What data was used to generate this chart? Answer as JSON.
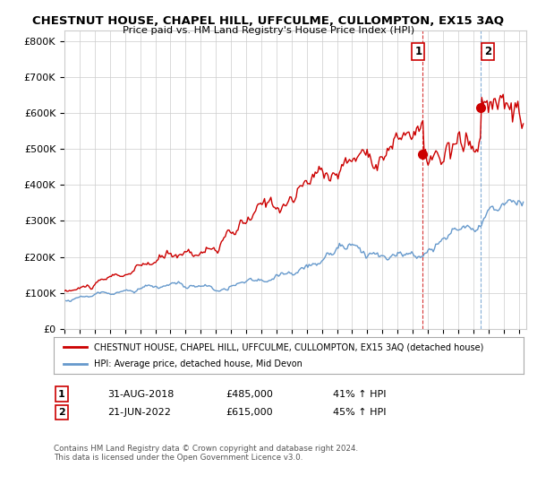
{
  "title": "CHESTNUT HOUSE, CHAPEL HILL, UFFCULME, CULLOMPTON, EX15 3AQ",
  "subtitle": "Price paid vs. HM Land Registry's House Price Index (HPI)",
  "ylabel_ticks": [
    "£0",
    "£100K",
    "£200K",
    "£300K",
    "£400K",
    "£500K",
    "£600K",
    "£700K",
    "£800K"
  ],
  "ytick_values": [
    0,
    100000,
    200000,
    300000,
    400000,
    500000,
    600000,
    700000,
    800000
  ],
  "ylim": [
    0,
    830000
  ],
  "xlim_start": 1995.0,
  "xlim_end": 2025.5,
  "hpi_color": "#6699cc",
  "price_color": "#cc0000",
  "dashed_color_red": "#cc0000",
  "dashed_color_blue": "#6699cc",
  "legend_line1": "CHESTNUT HOUSE, CHAPEL HILL, UFFCULME, CULLOMPTON, EX15 3AQ (detached house)",
  "legend_line2": "HPI: Average price, detached house, Mid Devon",
  "annotation1_num": "1",
  "annotation1_date": "31-AUG-2018",
  "annotation1_price": "£485,000",
  "annotation1_hpi": "41% ↑ HPI",
  "annotation2_num": "2",
  "annotation2_date": "21-JUN-2022",
  "annotation2_price": "£615,000",
  "annotation2_hpi": "45% ↑ HPI",
  "footer": "Contains HM Land Registry data © Crown copyright and database right 2024.\nThis data is licensed under the Open Government Licence v3.0.",
  "background_color": "#ffffff",
  "grid_color": "#cccccc",
  "sale1_x": 2018.67,
  "sale1_y": 485000,
  "sale2_x": 2022.47,
  "sale2_y": 615000
}
